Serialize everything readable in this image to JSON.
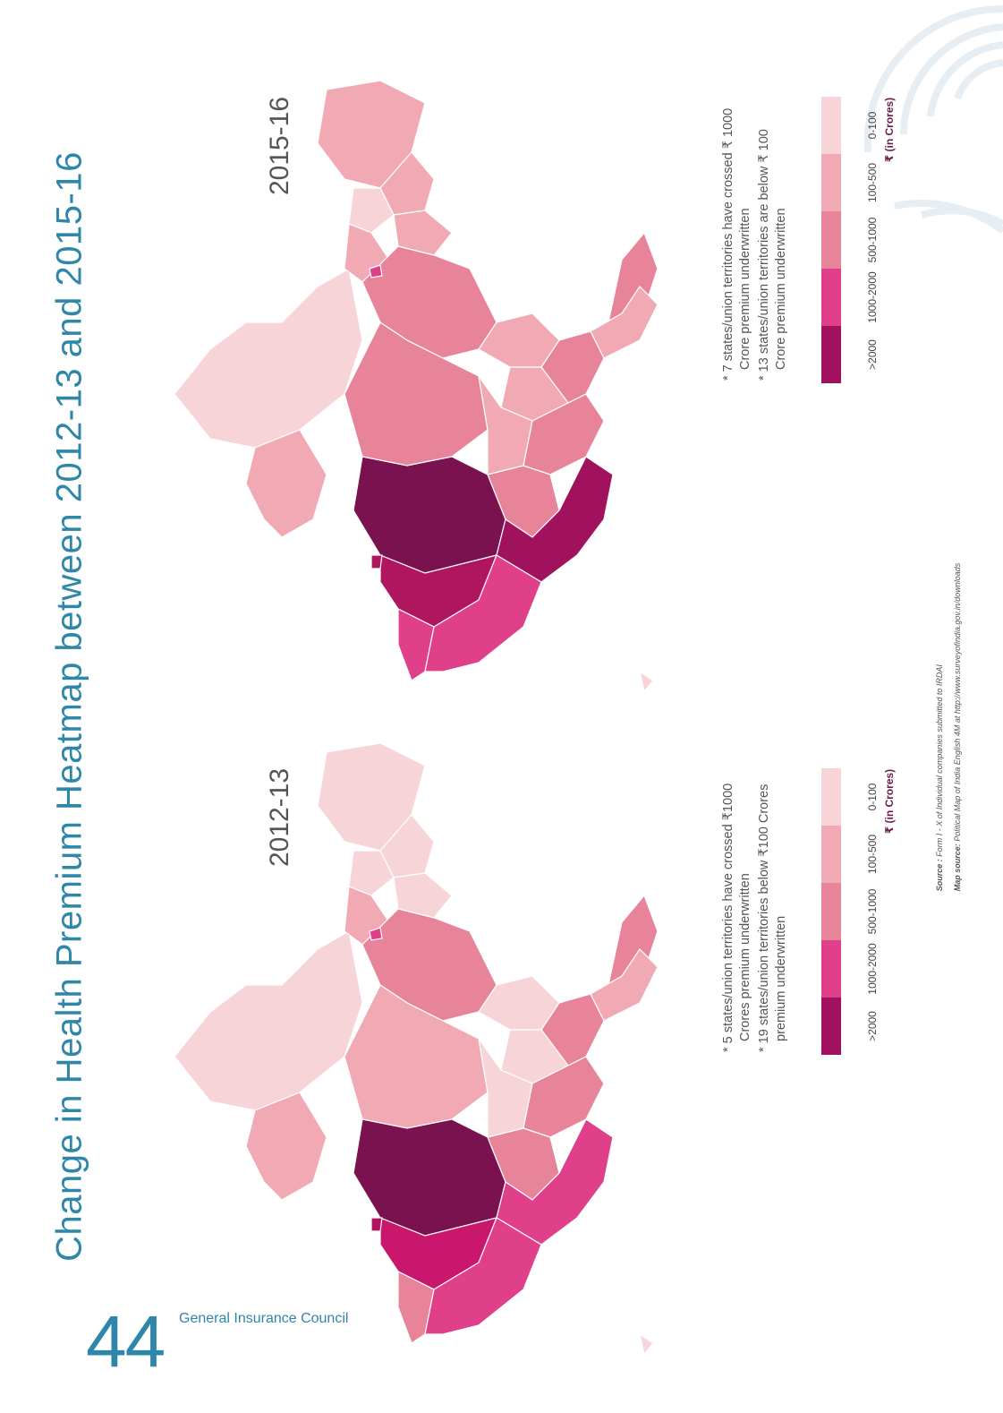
{
  "page": {
    "title": "Change in Health Premium Heatmap between 2012-13 and 2015-16",
    "page_number": "44",
    "organization": "General Insurance Council"
  },
  "colors": {
    "accent": "#2e86a8",
    "scale": [
      "#f7d4d8",
      "#f1aab4",
      "#e8849a",
      "#e03f8a",
      "#b0155f",
      "#7a1250"
    ]
  },
  "legend": {
    "categories": [
      "0-100",
      "100-500",
      "500-1000",
      "1000-2000",
      ">2000"
    ],
    "unit": "₹ (in Crores)",
    "colors": [
      "#f7d4d8",
      "#f1aab4",
      "#e8849a",
      "#e03f8a",
      "#a0125e"
    ]
  },
  "maps": [
    {
      "year": "2015-16",
      "notes": [
        "* 7 states/union territories have crossed ₹ 1000 Crore premium underwritten",
        "* 13 states/union territories are below ₹ 100 Crore premium underwritten"
      ]
    },
    {
      "year": "2012-13",
      "notes": [
        "* 5 states/union territories have crossed ₹1000 Crores premium underwritten",
        "* 19 states/union territories below ₹100 Crores premium underwritten"
      ]
    }
  ],
  "sources": {
    "source_label": "Source :",
    "source_text": "Form I - X of Individual companies submitted to IRDAI",
    "map_source_label": "Map source:",
    "map_source_text": "Political Map of India English 4M at http://www.surveyofindia.gov.in/downloads"
  }
}
